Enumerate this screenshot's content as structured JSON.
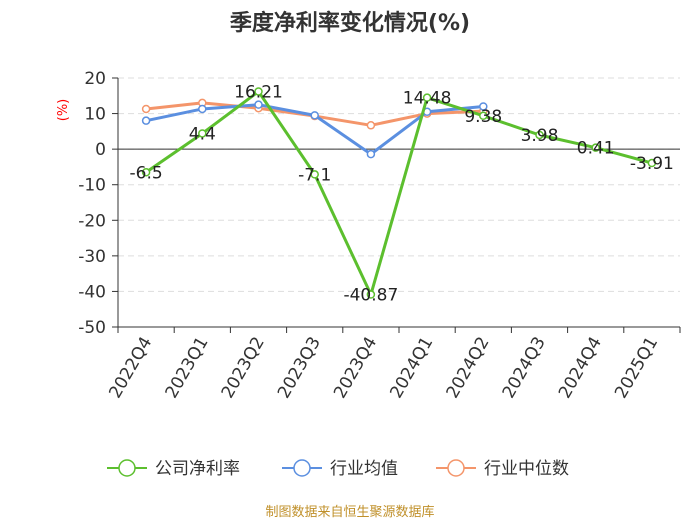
{
  "chart_data": {
    "type": "line",
    "title": "季度净利率变化情况(%)",
    "ylabel": "(%)",
    "xlabel": "",
    "ylim": [
      -50,
      20
    ],
    "yticks": [
      20,
      10,
      0,
      -10,
      -20,
      -30,
      -40,
      -50
    ],
    "categories": [
      "2022Q4",
      "2023Q1",
      "2023Q2",
      "2023Q3",
      "2023Q4",
      "2024Q1",
      "2024Q2",
      "2024Q3",
      "2024Q4",
      "2025Q1"
    ],
    "grid": "horizontal dashed",
    "legend_position": "bottom",
    "series": [
      {
        "name": "公司净利率",
        "color": "#5cbf2e",
        "values": [
          -6.5,
          4.4,
          16.21,
          -7.1,
          -40.87,
          14.48,
          9.38,
          3.98,
          0.41,
          -3.91
        ],
        "labels": [
          "-6.5",
          "4.4",
          "16.21",
          "-7.1",
          "-40.87",
          "14.48",
          "9.38",
          "3.98",
          "0.41",
          "-3.91"
        ]
      },
      {
        "name": "行业均值",
        "color": "#5b8fe0",
        "values": [
          8.0,
          11.3,
          12.5,
          9.5,
          -1.4,
          10.5,
          12.0,
          null,
          null,
          null
        ]
      },
      {
        "name": "行业中位数",
        "color": "#f4956a",
        "values": [
          11.3,
          13.0,
          11.5,
          9.3,
          6.7,
          10.0,
          10.7,
          null,
          null,
          null
        ]
      }
    ]
  },
  "source": "制图数据来自恒生聚源数据库"
}
